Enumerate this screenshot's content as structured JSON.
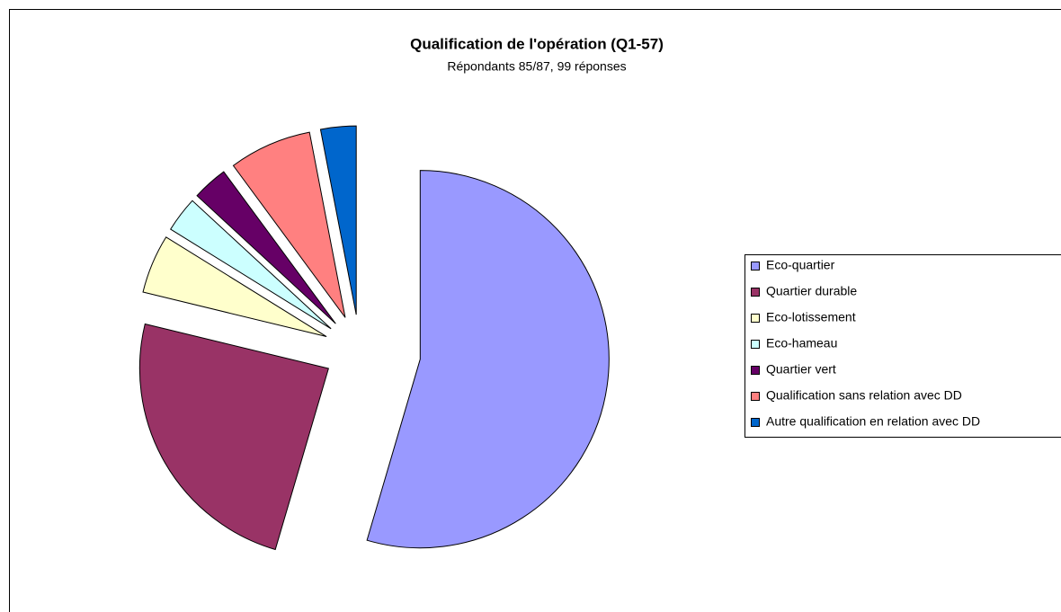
{
  "chart_data": {
    "type": "pie",
    "title": "Qualification de l'opération (Q1-57)",
    "subtitle": "Répondants 85/87, 99 réponses",
    "categories": [
      "Eco-quartier",
      "Quartier durable",
      "Eco-lotissement",
      "Eco-hameau",
      "Quartier vert",
      "Qualification sans relation avec DD",
      "Autre qualification en relation avec DD"
    ],
    "values": [
      54,
      24,
      5,
      3,
      3,
      7,
      3
    ],
    "colors": [
      "#9999ff",
      "#993366",
      "#ffffcc",
      "#ccffff",
      "#660066",
      "#ff8080",
      "#0066cc"
    ],
    "legend": "right"
  }
}
